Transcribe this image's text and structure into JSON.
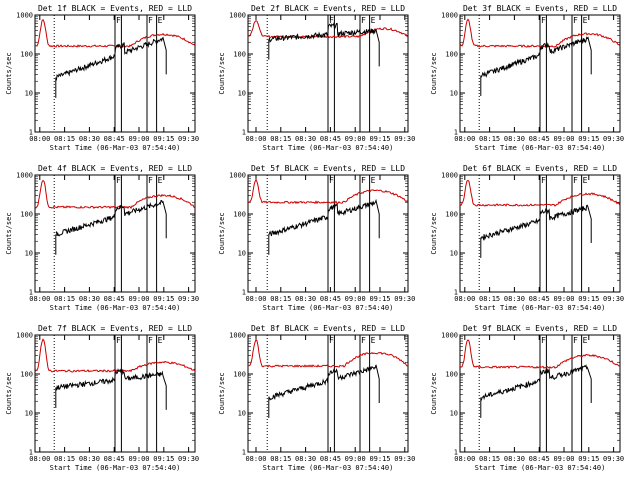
{
  "chart_data": {
    "type": "line",
    "y_scale": "log",
    "ylim": [
      1,
      1000
    ],
    "y_ticks": [
      "1000",
      "100",
      "10",
      "1"
    ],
    "x_ticks_a": [
      "08:00",
      "08:15",
      "08:30",
      "08:45",
      "09:00",
      "09:15",
      "09:30"
    ],
    "x_ticks_b": [
      "08:00",
      "08:15",
      "08:30",
      "08:45",
      "09:00",
      "09:15",
      "09:30"
    ],
    "ylabel": "Counts/sec",
    "xlabel": "Start Time (06-Mar-03 07:54:40)",
    "flag_labels": [
      "F",
      "F",
      "E"
    ],
    "colors": {
      "events": "#000000",
      "lld": "#cc0000"
    },
    "panels": [
      {
        "title": "Det 1f BLACK = Events, RED = LLD",
        "ticks": "a",
        "lld_peak": 750,
        "lld_base": 160,
        "lld_end": 320,
        "ev_base": 25,
        "ev_end": 250,
        "lld_start": 120,
        "ev_start": 25
      },
      {
        "title": "Det 2f BLACK = Events, RED = LLD",
        "ticks": "b",
        "lld_peak": 750,
        "lld_base": 280,
        "lld_end": 450,
        "ev_base": 240,
        "ev_end": 400,
        "lld_start": 300,
        "ev_start": 240,
        "flat": true
      },
      {
        "title": "Det 3f BLACK = Events, RED = LLD",
        "ticks": "a",
        "lld_peak": 750,
        "lld_base": 160,
        "lld_end": 330,
        "ev_base": 28,
        "ev_end": 250,
        "lld_start": 120,
        "ev_start": 28
      },
      {
        "title": "Det 4f BLACK = Events, RED = LLD",
        "ticks": "a",
        "lld_peak": 750,
        "lld_base": 150,
        "lld_end": 300,
        "ev_base": 30,
        "ev_end": 200,
        "lld_start": 150,
        "ev_start": 30
      },
      {
        "title": "Det 5f BLACK = Events, RED = LLD",
        "ticks": "b",
        "lld_peak": 750,
        "lld_base": 200,
        "lld_end": 400,
        "ev_base": 30,
        "ev_end": 200,
        "lld_start": 300,
        "ev_start": 30
      },
      {
        "title": "Det 6f BLACK = Events, RED = LLD",
        "ticks": "a",
        "lld_peak": 750,
        "lld_base": 170,
        "lld_end": 330,
        "ev_base": 25,
        "ev_end": 150,
        "lld_start": 170,
        "ev_start": 25
      },
      {
        "title": "Det 7f BLACK = Events, RED = LLD",
        "ticks": "a",
        "lld_peak": 750,
        "lld_base": 120,
        "lld_end": 200,
        "ev_base": 45,
        "ev_end": 100,
        "lld_start": 120,
        "ev_start": 45
      },
      {
        "title": "Det 8f BLACK = Events, RED = LLD",
        "ticks": "b",
        "lld_peak": 750,
        "lld_base": 160,
        "lld_end": 350,
        "ev_base": 25,
        "ev_end": 150,
        "lld_start": 160,
        "ev_start": 25
      },
      {
        "title": "Det 9f BLACK = Events, RED = LLD",
        "ticks": "a",
        "lld_peak": 750,
        "lld_base": 150,
        "lld_end": 300,
        "ev_base": 25,
        "ev_end": 150,
        "lld_start": 150,
        "ev_start": 25
      }
    ]
  }
}
